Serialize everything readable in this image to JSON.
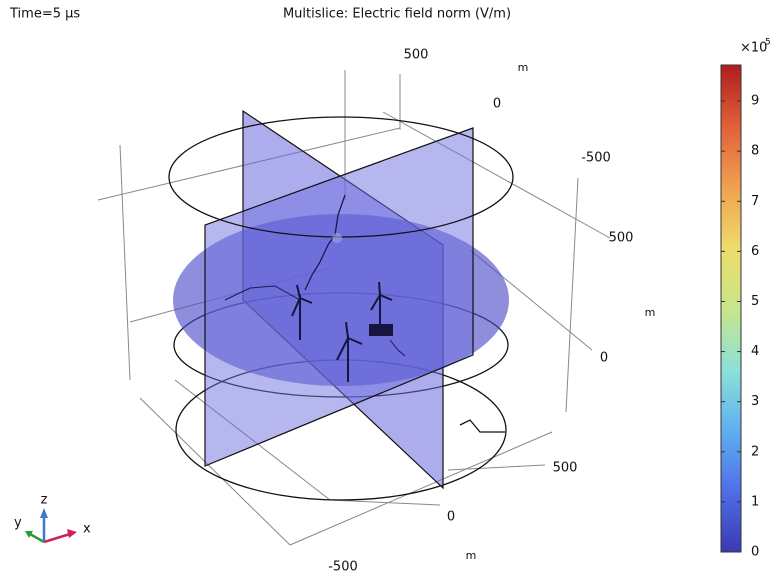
{
  "chart_data": {
    "type": "multislice",
    "time_label": "Time=5 µs",
    "title": "Multislice: Electric field norm (V/m)",
    "colorbar": {
      "multiplier": "×10",
      "exponent": "5",
      "ylim": [
        0,
        9.72
      ],
      "yticks": [
        0,
        1,
        2,
        3,
        4,
        5,
        6,
        7,
        8,
        9
      ],
      "colors": [
        "#3a3ab0",
        "#4f6ee8",
        "#5fb0f0",
        "#8ee0d8",
        "#c8e68a",
        "#eedc6a",
        "#f0a050",
        "#e0603a",
        "#b01c1c"
      ]
    },
    "scene_axes": [
      {
        "ticks": [
          500,
          0,
          -500
        ],
        "unit": "m"
      },
      {
        "ticks": [
          500,
          0
        ],
        "unit": "m"
      },
      {
        "ticks": [
          500,
          0,
          -500
        ],
        "unit": "m"
      }
    ],
    "triad": {
      "x": "x",
      "y": "y",
      "z": "z"
    }
  }
}
